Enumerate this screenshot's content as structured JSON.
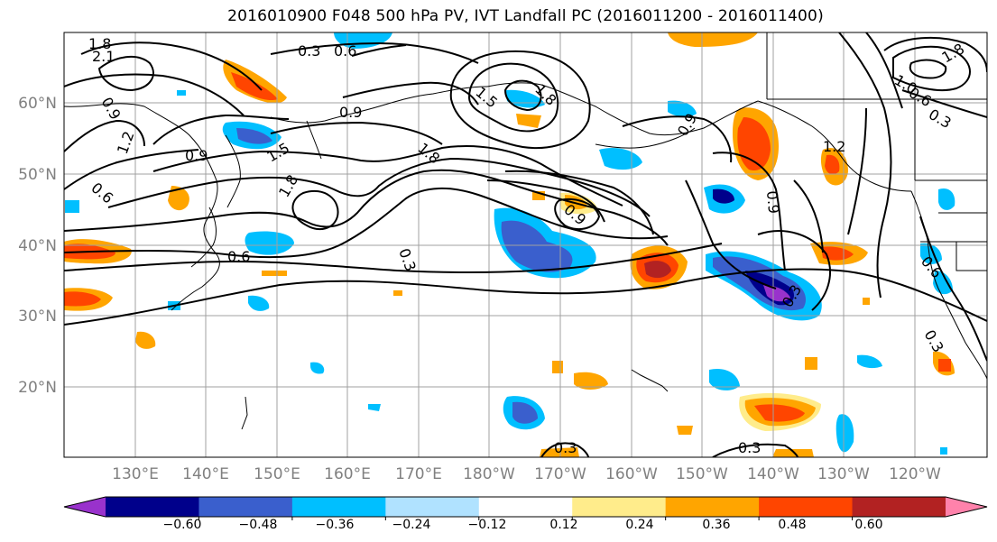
{
  "title": "2016010900 F048 500 hPa PV, IVT Landfall PC (2016011200 - 2016011400)",
  "map": {
    "lon_labels": [
      "130°E",
      "140°E",
      "150°E",
      "160°E",
      "170°E",
      "180°W",
      "170°W",
      "160°W",
      "150°W",
      "140°W",
      "130°W",
      "120°W"
    ],
    "lat_labels": [
      "60°N",
      "50°N",
      "40°N",
      "30°N",
      "20°N"
    ],
    "contour_labels": [
      {
        "text": "1.8"
      },
      {
        "text": "2.1"
      },
      {
        "text": "0.9"
      },
      {
        "text": "1.2"
      },
      {
        "text": "0.6"
      },
      {
        "text": "0.3"
      },
      {
        "text": "0.6"
      },
      {
        "text": "0.9"
      },
      {
        "text": "0.9"
      },
      {
        "text": "1.5"
      },
      {
        "text": "1.8"
      },
      {
        "text": "1.5"
      },
      {
        "text": "1.8"
      },
      {
        "text": "0.3"
      },
      {
        "text": "0.9"
      },
      {
        "text": "0.6"
      },
      {
        "text": "1.8"
      },
      {
        "text": "0.9"
      },
      {
        "text": "0.9"
      },
      {
        "text": "1.2"
      },
      {
        "text": "0.6"
      },
      {
        "text": "0.3"
      },
      {
        "text": "1.8"
      },
      {
        "text": "1.0"
      },
      {
        "text": "0.6"
      },
      {
        "text": "0.3"
      },
      {
        "text": "0.3"
      },
      {
        "text": "0.3"
      },
      {
        "text": "0.3"
      }
    ]
  },
  "colorbar": {
    "labels": [
      "−0.60",
      "−0.48",
      "−0.36",
      "−0.24",
      "−0.12",
      "0.12",
      "0.24",
      "0.36",
      "0.48",
      "0.60"
    ],
    "colors": [
      "#9932cc",
      "#00008b",
      "#3a5fcd",
      "#00bfff",
      "#b0e2ff",
      "#ffffff",
      "#ffec8b",
      "#ffa500",
      "#ff4500",
      "#b22222",
      "#ff82ab"
    ]
  }
}
